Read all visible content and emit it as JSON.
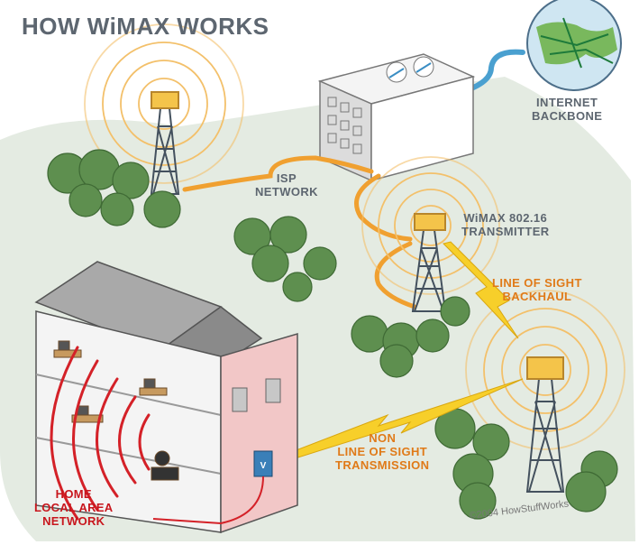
{
  "title": "HOW WiMAX WORKS",
  "labels": {
    "internet_backbone": [
      "INTERNET",
      "BACKBONE"
    ],
    "isp_network": [
      "ISP",
      "NETWORK"
    ],
    "wimax_transmitter": [
      "WiMAX 802.16",
      "TRANSMITTER"
    ],
    "line_of_sight_backhaul": [
      "LINE OF SIGHT",
      "BACKHAUL"
    ],
    "non_line_of_sight": [
      "NON",
      "LINE OF SIGHT",
      "TRANSMISSION"
    ],
    "home_lan": [
      "HOME",
      "LOCAL AREA",
      "NETWORK"
    ]
  },
  "copyright": "©2004 HowStuffWorks",
  "colors": {
    "ground": "#e4ebe2",
    "tree": "#5e8f4f",
    "cable": "#f0a030",
    "backbone_cable": "#4aa0d0",
    "signal_ring": "#f3c06a",
    "lan_wave": "#d42128",
    "lightning": "#f7cf2a",
    "title_grey": "#5d6670",
    "label_orange": "#e07a18",
    "label_red": "#c8161d"
  }
}
